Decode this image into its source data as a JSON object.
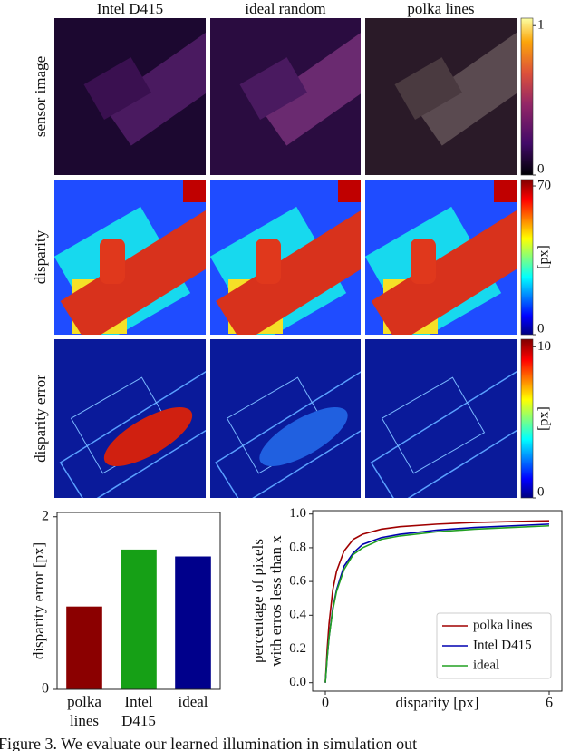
{
  "figure": {
    "column_titles": [
      "Intel D415",
      "ideal random",
      "polka lines"
    ],
    "row_labels": [
      "sensor image",
      "disparity",
      "disparity error"
    ],
    "colorbars": [
      {
        "lim": [
          0,
          1.05
        ],
        "ticks": [
          0,
          1
        ]
      },
      {
        "lim": [
          0,
          73
        ],
        "ticks": [
          0,
          70
        ],
        "label": "[px]"
      },
      {
        "lim": [
          0,
          10.5
        ],
        "ticks": [
          0,
          10
        ],
        "label": "[px]"
      }
    ]
  },
  "chart_data": [
    {
      "type": "bar",
      "ylabel": "disparity error [px]",
      "categories": [
        "polka lines",
        "Intel D415",
        "ideal"
      ],
      "values": [
        0.96,
        1.62,
        1.54
      ],
      "colors": [
        "#8b0000",
        "#16a016",
        "#00008b"
      ],
      "ylim": [
        0,
        2.05
      ],
      "yticks": [
        0,
        2
      ]
    },
    {
      "type": "line",
      "xlabel": "disparity [px]",
      "ylabel": [
        "percentage of pixels",
        "with erros less than x"
      ],
      "x": [
        0,
        0.05,
        0.1,
        0.2,
        0.3,
        0.5,
        0.75,
        1,
        1.5,
        2,
        3,
        4,
        5,
        6
      ],
      "series": [
        {
          "name": "polka lines",
          "color": "#a00000",
          "values": [
            0,
            0.2,
            0.35,
            0.55,
            0.66,
            0.78,
            0.85,
            0.88,
            0.91,
            0.925,
            0.94,
            0.95,
            0.955,
            0.96
          ]
        },
        {
          "name": "Intel D415",
          "color": "#0000b0",
          "values": [
            0,
            0.15,
            0.27,
            0.44,
            0.55,
            0.69,
            0.77,
            0.82,
            0.86,
            0.88,
            0.905,
            0.92,
            0.93,
            0.94
          ]
        },
        {
          "name": "ideal",
          "color": "#22a022",
          "values": [
            0,
            0.15,
            0.27,
            0.43,
            0.54,
            0.67,
            0.76,
            0.8,
            0.85,
            0.87,
            0.895,
            0.91,
            0.92,
            0.93
          ]
        }
      ],
      "xlim": [
        -0.34,
        6.34
      ],
      "ylim": [
        -0.05,
        1.02
      ],
      "xticks": [
        0,
        6
      ],
      "yticks": [
        {
          "value": 0,
          "label": "0.0"
        },
        {
          "value": 0.2,
          "label": "0.2"
        },
        {
          "value": 0.4,
          "label": "0.4"
        },
        {
          "value": 0.6,
          "label": "0.6"
        },
        {
          "value": 0.8,
          "label": "0.8"
        },
        {
          "value": 1,
          "label": "1.0"
        }
      ],
      "legend": "lower right"
    }
  ],
  "caption": "Figure 3.  We evaluate our learned illumination in simulation out"
}
